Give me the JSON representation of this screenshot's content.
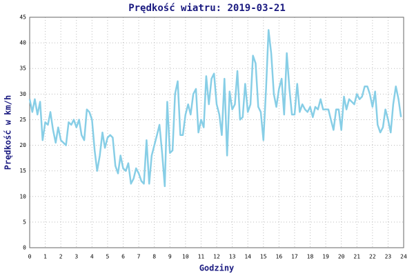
{
  "chart_data": {
    "type": "line",
    "title": "Prędkość wiatru: 2019-03-21",
    "x_label": "Godziny",
    "y_label": "Prędkość w km/h",
    "x": [
      0,
      0.17,
      0.33,
      0.5,
      0.67,
      0.83,
      1,
      1.17,
      1.33,
      1.5,
      1.67,
      1.83,
      2,
      2.17,
      2.33,
      2.5,
      2.67,
      2.83,
      3,
      3.17,
      3.33,
      3.5,
      3.67,
      3.83,
      4,
      4.17,
      4.33,
      4.5,
      4.67,
      4.83,
      5,
      5.17,
      5.33,
      5.5,
      5.67,
      5.83,
      6,
      6.17,
      6.33,
      6.5,
      6.67,
      6.83,
      7,
      7.17,
      7.33,
      7.5,
      7.67,
      7.83,
      8,
      8.17,
      8.33,
      8.5,
      8.67,
      8.83,
      9,
      9.17,
      9.33,
      9.5,
      9.67,
      9.83,
      10,
      10.17,
      10.33,
      10.5,
      10.67,
      10.83,
      11,
      11.17,
      11.33,
      11.5,
      11.67,
      11.83,
      12,
      12.17,
      12.33,
      12.5,
      12.67,
      12.83,
      13,
      13.17,
      13.33,
      13.5,
      13.67,
      13.83,
      14,
      14.17,
      14.33,
      14.5,
      14.67,
      14.83,
      15,
      15.17,
      15.33,
      15.5,
      15.67,
      15.83,
      16,
      16.17,
      16.33,
      16.5,
      16.67,
      16.83,
      17,
      17.17,
      17.33,
      17.5,
      17.67,
      17.83,
      18,
      18.17,
      18.33,
      18.5,
      18.67,
      18.83,
      19,
      19.17,
      19.33,
      19.5,
      19.67,
      19.83,
      20,
      20.17,
      20.33,
      20.5,
      20.67,
      20.83,
      21,
      21.17,
      21.33,
      21.5,
      21.67,
      21.83,
      22,
      22.17,
      22.33,
      22.5,
      22.67,
      22.83,
      23,
      23.17,
      23.33,
      23.5,
      23.67,
      23.83
    ],
    "series": [
      {
        "color": "#87cee6",
        "values": [
          29,
          26.5,
          29,
          26,
          28.5,
          21,
          24.5,
          24,
          26.5,
          23,
          20.5,
          23.5,
          21,
          20.5,
          20,
          24.5,
          24,
          25,
          23.5,
          25,
          22,
          21,
          27,
          26.5,
          25,
          19,
          15,
          18,
          22.5,
          19.5,
          21.5,
          22,
          21.5,
          16,
          14.5,
          18,
          15.5,
          15,
          16.5,
          12.5,
          13.5,
          15.5,
          14.5,
          13,
          12.5,
          21,
          12.5,
          18,
          20,
          22,
          24,
          18.5,
          12,
          28.5,
          18.5,
          19,
          30,
          32.5,
          22,
          22,
          26,
          28,
          26,
          30,
          31,
          22.5,
          25,
          23.5,
          33.5,
          28,
          33,
          34,
          28,
          26,
          22,
          33,
          18,
          30.5,
          27,
          28,
          34.5,
          25,
          25.5,
          32,
          26.5,
          28,
          37.5,
          36,
          27.5,
          26.5,
          21,
          31,
          42.5,
          38,
          30,
          27.5,
          31,
          33,
          26,
          38,
          31,
          26,
          26,
          32,
          26.5,
          28,
          27,
          26.5,
          27.5,
          25.5,
          27.5,
          27,
          29,
          27,
          27,
          27,
          25,
          23,
          27,
          27,
          23,
          29.5,
          27,
          29,
          28.5,
          28,
          30,
          29,
          29.5,
          31.5,
          31.5,
          30,
          27.5,
          30.5,
          24,
          22.5,
          23.5,
          27,
          25,
          22.5,
          28,
          31.5,
          29,
          25.5
        ]
      }
    ],
    "xlim": [
      0,
      24
    ],
    "xticks": [
      0,
      1,
      2,
      3,
      4,
      5,
      6,
      7,
      8,
      9,
      10,
      11,
      12,
      13,
      14,
      15,
      16,
      17,
      18,
      19,
      20,
      21,
      22,
      23,
      24
    ],
    "ylim": [
      0,
      45
    ],
    "yticks": [
      0,
      5,
      10,
      15,
      20,
      25,
      30,
      35,
      40,
      45
    ],
    "grid": true
  }
}
